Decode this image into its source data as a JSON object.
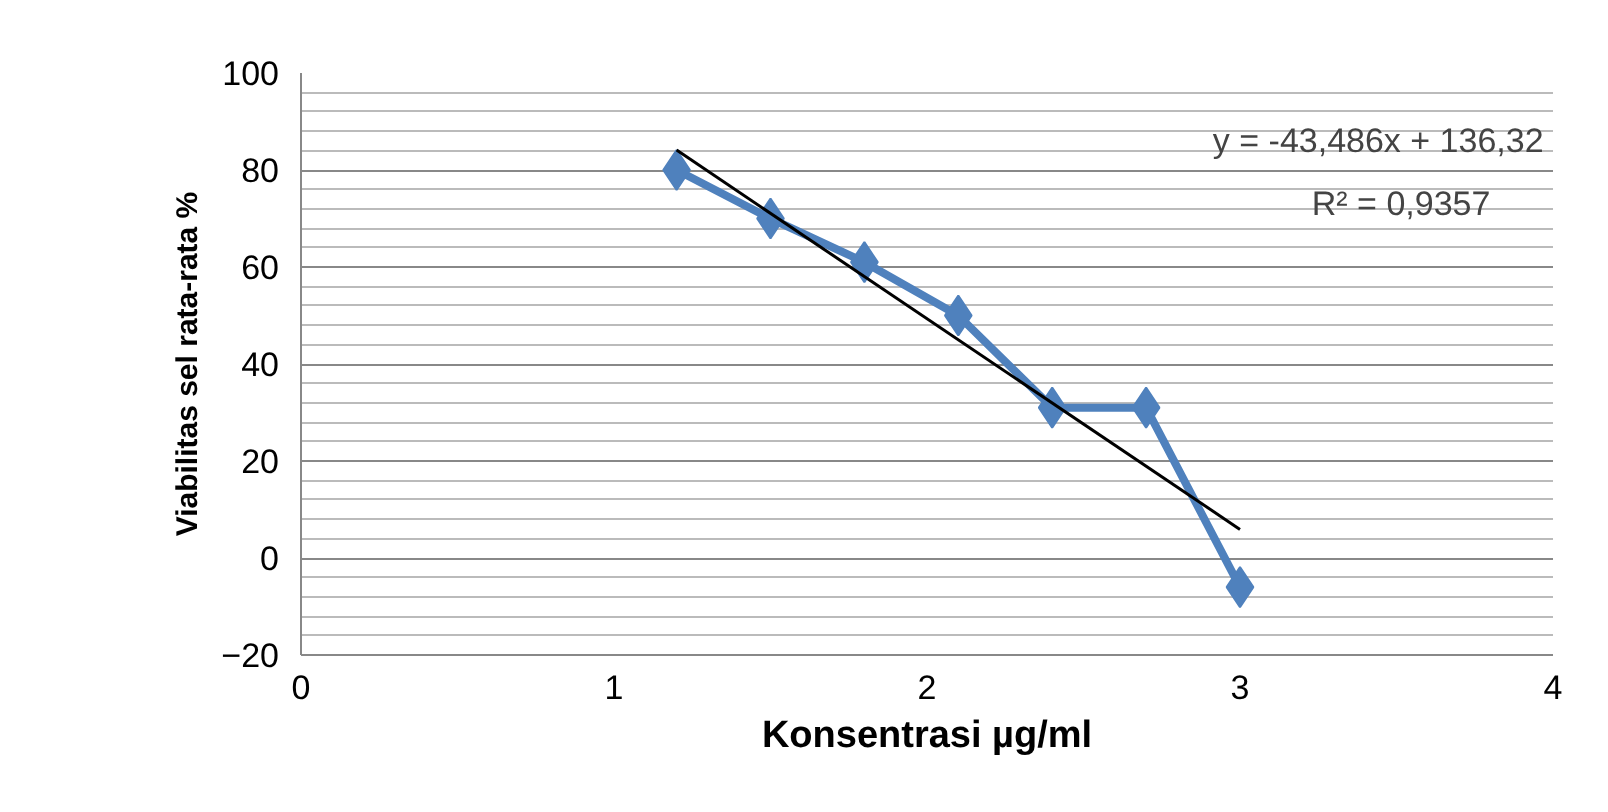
{
  "chart_data": {
    "type": "line",
    "xlabel": "Konsentrasi µg/ml",
    "ylabel": "Viabilitas sel rata-rata %",
    "x": [
      1.2,
      1.5,
      1.8,
      2.1,
      2.4,
      2.7,
      3.0
    ],
    "series": [
      {
        "color": "#4f81bd",
        "values": [
          80,
          70,
          61,
          50,
          31,
          31,
          -6
        ],
        "marker": "diamond"
      },
      {
        "type": "line",
        "color": "#000000",
        "x": [
          1.2,
          3.0
        ],
        "values": [
          84.1,
          5.9
        ],
        "marker": "none"
      }
    ],
    "xlim": [
      0,
      4
    ],
    "xticks": [
      0,
      1,
      2,
      3,
      4
    ],
    "ylim": [
      -20,
      100
    ],
    "yticks": [
      -20,
      0,
      20,
      40,
      60,
      80,
      100
    ],
    "grid": "y",
    "annotations": [
      "y = -43,486x + 136,32",
      "R² = 0,9357"
    ]
  }
}
